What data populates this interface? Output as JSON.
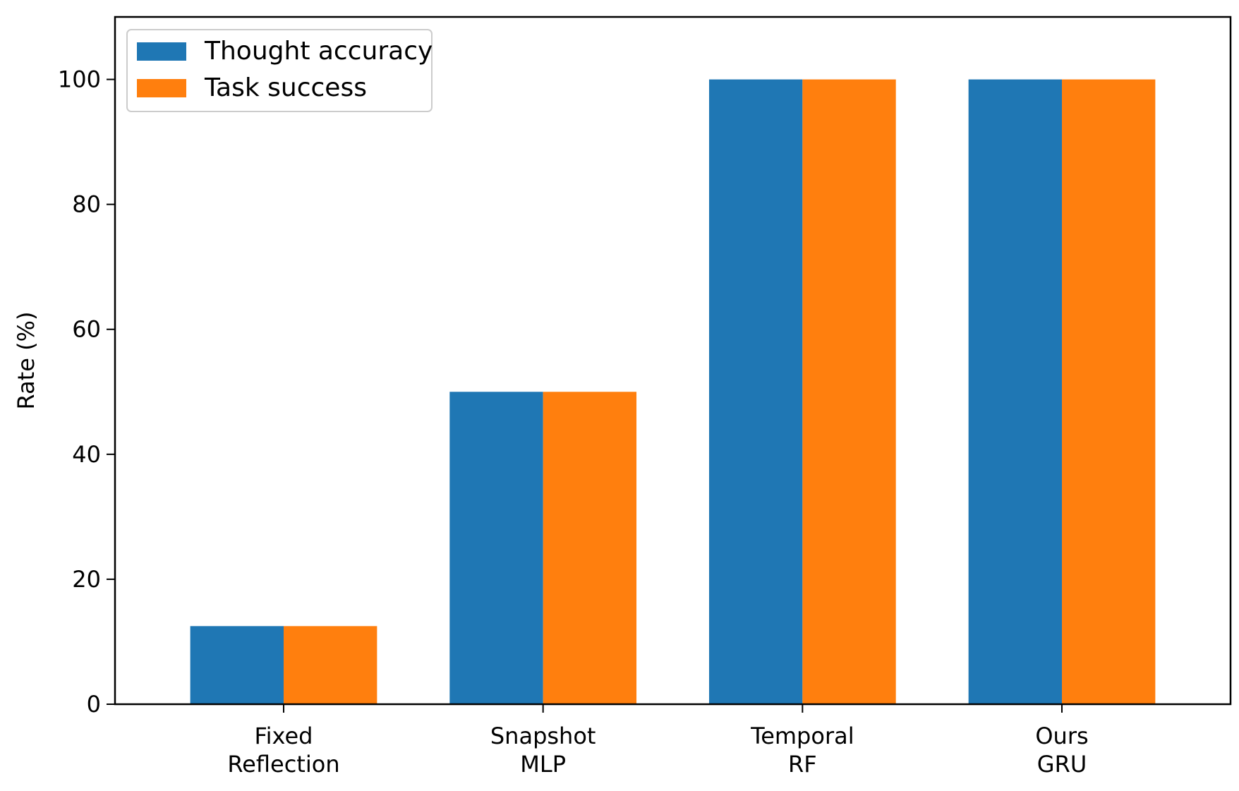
{
  "chart_data": {
    "type": "bar",
    "title": "",
    "xlabel": "",
    "ylabel": "Rate (%)",
    "ylim": [
      0,
      110
    ],
    "yticks": [
      0,
      20,
      40,
      60,
      80,
      100
    ],
    "categories": [
      [
        "Fixed",
        "Reflection"
      ],
      [
        "Snapshot",
        "MLP"
      ],
      [
        "Temporal",
        "RF"
      ],
      [
        "Ours",
        "GRU"
      ]
    ],
    "series": [
      {
        "name": "Thought accuracy",
        "color": "#1f77b4",
        "values": [
          12.5,
          50,
          100,
          100
        ]
      },
      {
        "name": "Task success",
        "color": "#ff7f0e",
        "values": [
          12.5,
          50,
          100,
          100
        ]
      }
    ],
    "legend_position": "top-left",
    "grid": false
  }
}
